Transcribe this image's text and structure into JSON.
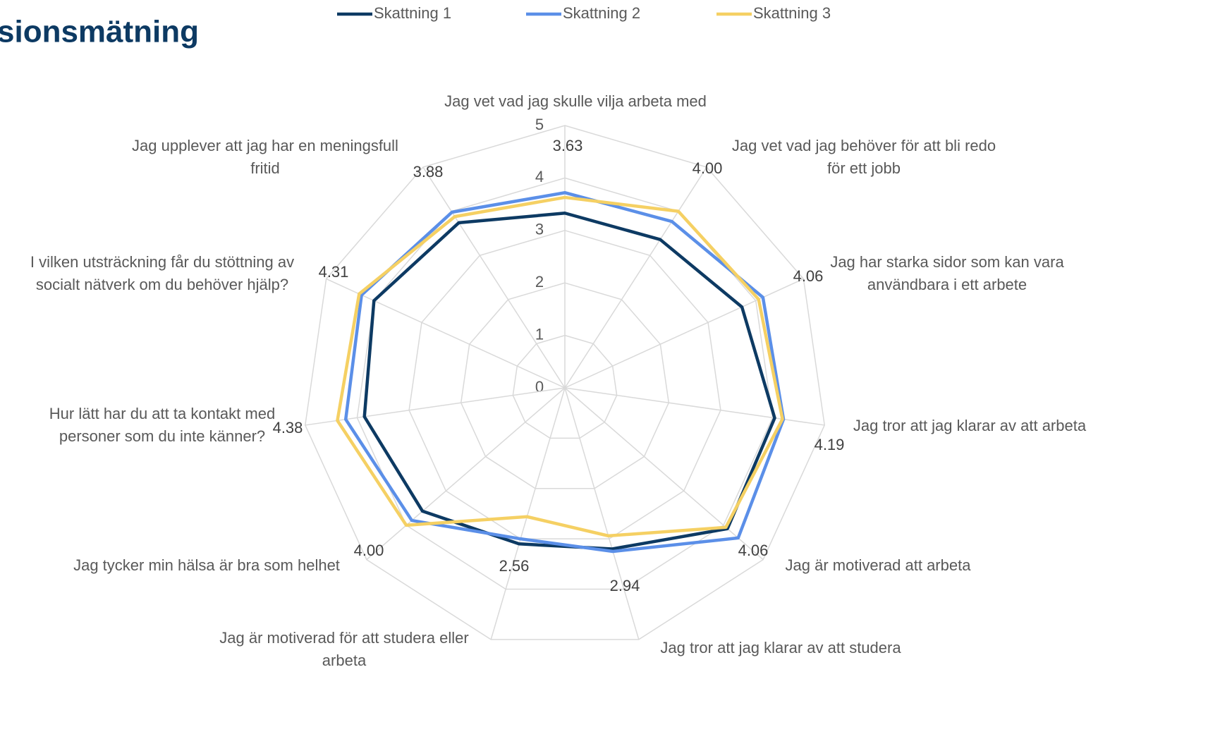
{
  "chart_data": {
    "type": "radar",
    "title": "sionsmätning",
    "categories": [
      [
        "Jag vet vad jag skulle vilja arbeta med"
      ],
      [
        "Jag vet vad jag behöver för att bli redo",
        "för ett jobb"
      ],
      [
        "Jag har starka sidor som kan vara",
        "användbara i ett arbete"
      ],
      [
        "Jag tror att jag klarar av att arbeta"
      ],
      [
        "Jag är motiverad att arbeta"
      ],
      [
        "Jag tror att jag klarar av att studera"
      ],
      [
        "Jag är motiverad för att studera eller",
        "arbeta"
      ],
      [
        "Jag tycker min hälsa är bra som helhet"
      ],
      [
        "Hur lätt har du att ta kontakt med",
        "personer som du inte känner?"
      ],
      [
        "I vilken utsträckning får du stöttning av",
        "socialt nätverk om du behöver hjälp?"
      ],
      [
        "Jag upplever att jag har en meningsfull",
        "fritid"
      ]
    ],
    "series": [
      {
        "name": "Skattning 1",
        "color": "#0d3a63",
        "values": [
          3.33,
          3.36,
          3.71,
          4.04,
          4.1,
          3.2,
          3.1,
          3.59,
          3.86,
          4.0,
          3.74
        ]
      },
      {
        "name": "Skattning 2",
        "color": "#5b8fe8",
        "values": [
          3.72,
          3.77,
          4.15,
          4.21,
          4.37,
          3.25,
          3.0,
          3.86,
          4.22,
          4.26,
          3.98
        ]
      },
      {
        "name": "Skattning 3",
        "color": "#f5d063",
        "values": [
          3.63,
          4.0,
          4.06,
          4.19,
          4.06,
          2.94,
          2.56,
          4.0,
          4.38,
          4.31,
          3.88
        ],
        "value_labels": [
          "3.63",
          "4.00",
          "4.06",
          "4.19",
          "4.06",
          "2.94",
          "2.56",
          "4.00",
          "4.38",
          "4.31",
          "3.88"
        ]
      }
    ],
    "rlim": [
      0,
      5
    ],
    "rticks": [
      0,
      1,
      2,
      3,
      4,
      5
    ],
    "grid": true,
    "legend": "top"
  }
}
